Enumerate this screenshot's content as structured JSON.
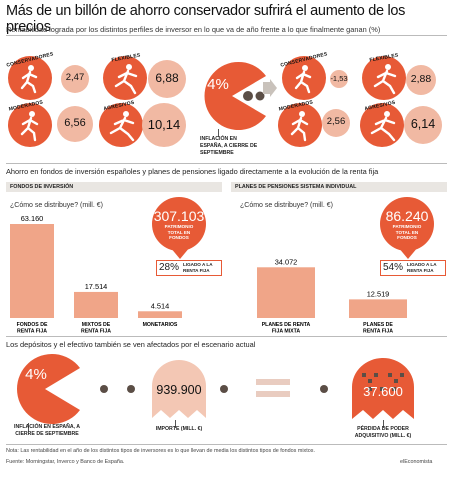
{
  "title": "Más de un billón de ahorro conservador sufrirá el aumento de los precios",
  "subtitle": "Rentabilidad lograda por los distintos perfiles de inversor en lo que va de año frente a lo que finalmente ganan (%)",
  "profiles_left": [
    {
      "label": "CONSERVADORES",
      "value": "2,47"
    },
    {
      "label": "FLEXIBLES",
      "value": "6,88"
    },
    {
      "label": "MODERADOS",
      "value": "6,56"
    },
    {
      "label": "AGRESIVOS",
      "value": "10,14"
    }
  ],
  "inflation": {
    "value": "4%",
    "caption": "INFLACIÓN EN ESPAÑA, A CIERRE DE SEPTIEMBRE"
  },
  "profiles_right": [
    {
      "label": "CONSERVADORES",
      "value": "-1,53"
    },
    {
      "label": "FLEXIBLES",
      "value": "2,88"
    },
    {
      "label": "MODERADOS",
      "value": "2,56"
    },
    {
      "label": "AGRESIVOS",
      "value": "6,14"
    }
  ],
  "section2_title": "Ahorro en fondos de inversión españoles y planes de pensiones ligado directamente a la evolución de la renta fija",
  "funds": {
    "tag": "FONDOS DE INVERSIÓN",
    "question": "¿Cómo se distribuye? (mill. €)",
    "total": "307.103",
    "total_caption": "PATRIMONIO TOTAL EN FONDOS",
    "pct": "28%",
    "pct_caption": "LIGADO A LA RENTA FIJA"
  },
  "pensions": {
    "tag": "PLANES DE PENSIONES SISTEMA INDIVIDUAL",
    "question": "¿Cómo se distribuye? (mill. €)",
    "total": "86.240",
    "total_caption": "PATRIMONIO TOTAL EN FONDOS",
    "pct": "54%",
    "pct_caption": "LIGADO A LA RENTA FIJA"
  },
  "chart_data": [
    {
      "type": "bar",
      "categories": [
        "FONDOS DE RENTA FIJA",
        "MIXTOS DE RENTA FIJA",
        "MONETARIOS"
      ],
      "values": [
        63160,
        17514,
        4514
      ],
      "value_labels": [
        "63.160",
        "17.514",
        "4.514"
      ],
      "ylabel": "¿Cómo se distribuye? (mill. €)"
    },
    {
      "type": "bar",
      "categories": [
        "PLANES DE RENTA FIJA MIXTA",
        "PLANES DE RENTA FIJA"
      ],
      "values": [
        34072,
        12519
      ],
      "value_labels": [
        "34.072",
        "12.519"
      ],
      "ylabel": "¿Cómo se distribuye? (mill. €)"
    }
  ],
  "section3_title": "Los depósitos y el efectivo también se ven afectados por el escenario actual",
  "deposits": {
    "inflation_value": "4%",
    "inflation_caption": "INFLACIÓN EN ESPAÑA, A CIERRE DE SEPTIEMBRE",
    "amount": "939.900",
    "amount_caption": "IMPORTE (MILL. €)",
    "loss": "37.600",
    "loss_caption": "PÉRDIDA DE PODER ADQUISITIVO (MILL. €)"
  },
  "note": "Nota: Las rentabilidad en el año de los distintos tipos de inversores es lo que llevan de media los distintos tipos de fondos mixtos.",
  "source": "Fuente: Morningstar, Inverco y Banco de España.",
  "brand": "elEconomista",
  "colors": {
    "accent": "#e75a36",
    "light": "#f1b9a3",
    "bar": "#f0a588",
    "ghost": "#f3c7b4",
    "dots": "#5b4e46"
  }
}
